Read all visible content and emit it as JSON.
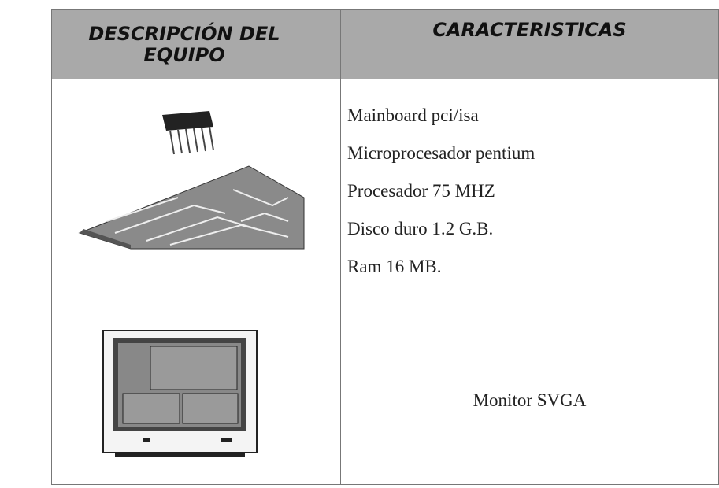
{
  "table": {
    "header": [
      "DESCRIPCIÓN DEL EQUIPO",
      "CARACTERISTICAS"
    ],
    "rows": [
      {
        "characteristics": [
          "Mainboard  pci/isa",
          "Microprocesador pentium",
          "Procesador 75 MHZ",
          "Disco duro 1.2 G.B.",
          "Ram 16 MB."
        ]
      },
      {
        "characteristics": [
          "Monitor SVGA"
        ]
      }
    ]
  }
}
